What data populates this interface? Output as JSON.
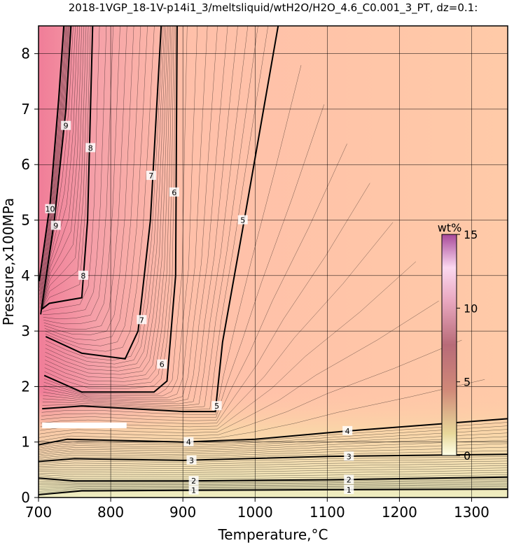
{
  "title": "2018-1VGP_18-1V-p14i1_3/meltsliquid/wtH2O/H2O_4.6_C0.001_3_PT, dz=0.1:",
  "xlabel": "Temperature,°C",
  "ylabel": "Pressure,x100MPa",
  "colors": {
    "background_low": "#f2efc2",
    "background_mid": "#ffcaa8",
    "background_high": "#f08aa0",
    "contour_line": "#000000",
    "highlight_band": "#ffffff"
  },
  "chart_data": {
    "type": "heatmap",
    "title": "2018-1VGP_18-1V-p14i1_3/meltsliquid/wtH2O/H2O_4.6_C0.001_3_PT, dz=0.1:",
    "xlabel": "Temperature,°C",
    "ylabel": "Pressure,x100MPa",
    "xlim": [
      700,
      1350
    ],
    "ylim": [
      0,
      8.5
    ],
    "x_ticks": [
      700,
      800,
      900,
      1000,
      1100,
      1200,
      1300
    ],
    "y_ticks": [
      0,
      1,
      2,
      3,
      4,
      5,
      6,
      7,
      8
    ],
    "x_tick_labels": [
      "700",
      "800",
      "900",
      "1000",
      "1100",
      "1200",
      "1300"
    ],
    "y_tick_labels": [
      "0",
      "1",
      "2",
      "3",
      "4",
      "5",
      "6",
      "7",
      "8"
    ],
    "grid": true,
    "colorbar": {
      "label": "wt%",
      "range": [
        0,
        15
      ],
      "ticks": [
        0,
        5,
        10,
        15
      ],
      "tick_labels": [
        "0",
        "5",
        "10",
        "15"
      ],
      "placement": "right-inside"
    },
    "highlight_band": {
      "x_range": [
        705,
        822
      ],
      "y": 1.3
    },
    "contours": [
      {
        "level": 1,
        "label": "1",
        "points": [
          [
            700,
            0.05
          ],
          [
            760,
            0.12
          ],
          [
            900,
            0.13
          ],
          [
            1100,
            0.14
          ],
          [
            1350,
            0.15
          ]
        ],
        "label_at": [
          [
            915,
            0.13
          ],
          [
            1130,
            0.14
          ]
        ]
      },
      {
        "level": 2,
        "label": "2",
        "points": [
          [
            700,
            0.35
          ],
          [
            750,
            0.3
          ],
          [
            900,
            0.3
          ],
          [
            1100,
            0.32
          ],
          [
            1350,
            0.37
          ]
        ],
        "label_at": [
          [
            915,
            0.3
          ],
          [
            1130,
            0.32
          ]
        ]
      },
      {
        "level": 3,
        "label": "3",
        "points": [
          [
            700,
            0.65
          ],
          [
            750,
            0.7
          ],
          [
            900,
            0.67
          ],
          [
            1100,
            0.74
          ],
          [
            1350,
            0.78
          ]
        ],
        "label_at": [
          [
            912,
            0.67
          ],
          [
            1130,
            0.74
          ]
        ]
      },
      {
        "level": 4,
        "label": "4",
        "points": [
          [
            700,
            0.95
          ],
          [
            740,
            1.05
          ],
          [
            900,
            1.0
          ],
          [
            1000,
            1.05
          ],
          [
            1130,
            1.2
          ],
          [
            1350,
            1.42
          ]
        ],
        "label_at": [
          [
            908,
            1.0
          ],
          [
            1128,
            1.2
          ]
        ]
      },
      {
        "level": 5,
        "label": "5",
        "points": [
          [
            705,
            1.6
          ],
          [
            760,
            1.65
          ],
          [
            900,
            1.55
          ],
          [
            945,
            1.55
          ],
          [
            955,
            2.8
          ],
          [
            985,
            5.0
          ],
          [
            1032,
            8.5
          ]
        ],
        "label_at": [
          [
            947,
            1.65
          ],
          [
            983,
            5.0
          ]
        ]
      },
      {
        "level": 6,
        "label": "6",
        "points": [
          [
            708,
            2.2
          ],
          [
            760,
            1.9
          ],
          [
            860,
            1.9
          ],
          [
            878,
            2.1
          ],
          [
            890,
            4.0
          ],
          [
            892,
            8.5
          ]
        ],
        "label_at": [
          [
            871,
            2.4
          ],
          [
            888,
            5.5
          ]
        ]
      },
      {
        "level": 7,
        "label": "7",
        "points": [
          [
            710,
            2.9
          ],
          [
            760,
            2.6
          ],
          [
            820,
            2.5
          ],
          [
            838,
            3.0
          ],
          [
            855,
            5.0
          ],
          [
            870,
            8.5
          ]
        ],
        "label_at": [
          [
            843,
            3.2
          ],
          [
            856,
            5.8
          ]
        ]
      },
      {
        "level": 8,
        "label": "8",
        "points": [
          [
            705,
            3.4
          ],
          [
            715,
            3.5
          ],
          [
            760,
            3.6
          ],
          [
            768,
            5.0
          ],
          [
            775,
            8.5
          ]
        ],
        "label_at": [
          [
            762,
            4.0
          ],
          [
            772,
            6.3
          ]
        ]
      },
      {
        "level": 9,
        "label": "9",
        "points": [
          [
            703,
            3.3
          ],
          [
            722,
            5.0
          ],
          [
            738,
            7.0
          ],
          [
            745,
            8.5
          ]
        ],
        "label_at": [
          [
            724,
            4.9
          ],
          [
            738,
            6.7
          ]
        ]
      },
      {
        "level": 10,
        "label": "10",
        "points": [
          [
            701,
            3.9
          ],
          [
            716,
            5.3
          ],
          [
            728,
            7.2
          ],
          [
            735,
            8.5
          ]
        ],
        "label_at": [
          [
            716,
            5.2
          ]
        ]
      }
    ]
  }
}
